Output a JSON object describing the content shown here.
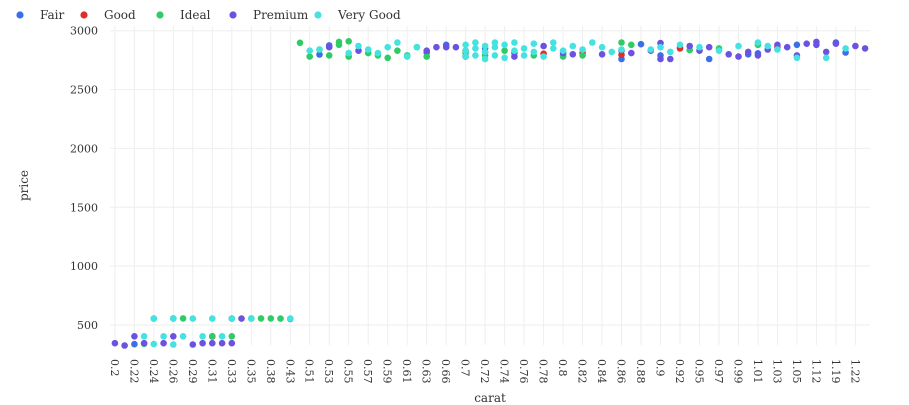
{
  "chart_data": {
    "type": "scatter",
    "xlabel": "carat",
    "ylabel": "price",
    "x_axis_kind": "category",
    "categories": [
      "0.2",
      "0.21",
      "0.22",
      "0.23",
      "0.24",
      "0.25",
      "0.26",
      "0.27",
      "0.29",
      "0.3",
      "0.31",
      "0.32",
      "0.33",
      "0.34",
      "0.35",
      "0.36",
      "0.38",
      "0.41",
      "0.43",
      "0.5",
      "0.51",
      "0.52",
      "0.53",
      "0.54",
      "0.55",
      "0.56",
      "0.57",
      "0.58",
      "0.59",
      "0.6",
      "0.61",
      "0.62",
      "0.63",
      "0.64",
      "0.66",
      "0.68",
      "0.7",
      "0.71",
      "0.72",
      "0.73",
      "0.74",
      "0.75",
      "0.76",
      "0.77",
      "0.78",
      "0.79",
      "0.8",
      "0.81",
      "0.82",
      "0.83",
      "0.84",
      "0.85",
      "0.86",
      "0.87",
      "0.88",
      "0.89",
      "0.9",
      "0.91",
      "0.92",
      "0.93",
      "0.95",
      "0.96",
      "0.97",
      "0.98",
      "0.99",
      "1",
      "1.01",
      "1.02",
      "1.03",
      "1.04",
      "1.05",
      "1.07",
      "1.12",
      "1.17",
      "1.19",
      "1.21",
      "1.22",
      "1.23"
    ],
    "tick_labels": [
      "0.2",
      "0.22",
      "0.24",
      "0.26",
      "0.29",
      "0.31",
      "0.33",
      "0.35",
      "0.38",
      "0.43",
      "0.51",
      "0.53",
      "0.55",
      "0.57",
      "0.59",
      "0.61",
      "0.63",
      "0.66",
      "0.7",
      "0.72",
      "0.74",
      "0.76",
      "0.78",
      "0.8",
      "0.82",
      "0.84",
      "0.86",
      "0.88",
      "0.9",
      "0.92",
      "0.95",
      "0.97",
      "0.99",
      "1.01",
      "1.03",
      "1.05",
      "1.12",
      "1.19",
      "1.22"
    ],
    "yticks": [
      500,
      1000,
      1500,
      2000,
      2500,
      3000
    ],
    "ylim": [
      330,
      3040
    ],
    "grid": true,
    "legend_position": "top-left",
    "series": [
      {
        "name": "Fair",
        "color": "#3b6fe8",
        "points": [
          [
            "0.22",
            337
          ],
          [
            "0.52",
            2798
          ],
          [
            "0.53",
            2875
          ],
          [
            "0.63",
            2815
          ],
          [
            "0.66",
            2880
          ],
          [
            "0.72",
            2850
          ],
          [
            "0.75",
            2812
          ],
          [
            "0.8",
            2790
          ],
          [
            "0.86",
            2760
          ],
          [
            "0.86",
            2830
          ],
          [
            "0.88",
            2885
          ],
          [
            "0.9",
            2790
          ],
          [
            "0.92",
            2855
          ],
          [
            "0.96",
            2760
          ],
          [
            "1",
            2800
          ],
          [
            "1.01",
            2808
          ],
          [
            "1.05",
            2880
          ],
          [
            "1.19",
            2900
          ],
          [
            "1.21",
            2815
          ]
        ]
      },
      {
        "name": "Good",
        "color": "#e02d2d",
        "points": [
          [
            "0.31",
            402
          ],
          [
            "0.7",
            2830
          ],
          [
            "0.78",
            2805
          ],
          [
            "0.82",
            2810
          ],
          [
            "0.86",
            2795
          ],
          [
            "0.92",
            2850
          ],
          [
            "1.03",
            2862
          ]
        ]
      },
      {
        "name": "Ideal",
        "color": "#2fcc66",
        "points": [
          [
            "0.23",
            340
          ],
          [
            "0.24",
            554
          ],
          [
            "0.26",
            556
          ],
          [
            "0.27",
            556
          ],
          [
            "0.31",
            405
          ],
          [
            "0.33",
            404
          ],
          [
            "0.35",
            556
          ],
          [
            "0.36",
            556
          ],
          [
            "0.38",
            556
          ],
          [
            "0.41",
            554
          ],
          [
            "0.5",
            2897
          ],
          [
            "0.51",
            2780
          ],
          [
            "0.52",
            2840
          ],
          [
            "0.53",
            2790
          ],
          [
            "0.54",
            2880
          ],
          [
            "0.54",
            2905
          ],
          [
            "0.55",
            2780
          ],
          [
            "0.55",
            2910
          ],
          [
            "0.57",
            2810
          ],
          [
            "0.58",
            2790
          ],
          [
            "0.59",
            2770
          ],
          [
            "0.6",
            2830
          ],
          [
            "0.61",
            2790
          ],
          [
            "0.62",
            2860
          ],
          [
            "0.63",
            2780
          ],
          [
            "0.7",
            2810
          ],
          [
            "0.72",
            2790
          ],
          [
            "0.74",
            2830
          ],
          [
            "0.77",
            2790
          ],
          [
            "0.8",
            2780
          ],
          [
            "0.82",
            2790
          ],
          [
            "0.86",
            2900
          ],
          [
            "0.87",
            2880
          ],
          [
            "0.93",
            2835
          ],
          [
            "0.97",
            2850
          ],
          [
            "1.01",
            2880
          ]
        ]
      },
      {
        "name": "Premium",
        "color": "#6b52e0",
        "points": [
          [
            "0.2",
            345
          ],
          [
            "0.21",
            326
          ],
          [
            "0.22",
            404
          ],
          [
            "0.23",
            345
          ],
          [
            "0.25",
            345
          ],
          [
            "0.26",
            404
          ],
          [
            "0.29",
            334
          ],
          [
            "0.3",
            345
          ],
          [
            "0.31",
            345
          ],
          [
            "0.32",
            345
          ],
          [
            "0.33",
            345
          ],
          [
            "0.33",
            554
          ],
          [
            "0.34",
            554
          ],
          [
            "0.43",
            552
          ],
          [
            "0.53",
            2860
          ],
          [
            "0.56",
            2830
          ],
          [
            "0.63",
            2830
          ],
          [
            "0.64",
            2860
          ],
          [
            "0.66",
            2860
          ],
          [
            "0.68",
            2860
          ],
          [
            "0.7",
            2780
          ],
          [
            "0.72",
            2820
          ],
          [
            "0.75",
            2780
          ],
          [
            "0.78",
            2870
          ],
          [
            "0.8",
            2810
          ],
          [
            "0.81",
            2800
          ],
          [
            "0.84",
            2800
          ],
          [
            "0.87",
            2810
          ],
          [
            "0.89",
            2830
          ],
          [
            "0.9",
            2760
          ],
          [
            "0.9",
            2895
          ],
          [
            "0.91",
            2760
          ],
          [
            "0.93",
            2870
          ],
          [
            "0.95",
            2830
          ],
          [
            "0.96",
            2860
          ],
          [
            "0.98",
            2800
          ],
          [
            "0.99",
            2780
          ],
          [
            "1",
            2820
          ],
          [
            "1.01",
            2790
          ],
          [
            "1.02",
            2840
          ],
          [
            "1.03",
            2880
          ],
          [
            "1.04",
            2860
          ],
          [
            "1.05",
            2790
          ],
          [
            "1.07",
            2890
          ],
          [
            "1.12",
            2880
          ],
          [
            "1.12",
            2905
          ],
          [
            "1.17",
            2820
          ],
          [
            "1.19",
            2890
          ],
          [
            "1.22",
            2870
          ],
          [
            "1.23",
            2850
          ]
        ]
      },
      {
        "name": "Very Good",
        "color": "#44e2e0",
        "points": [
          [
            "0.23",
            404
          ],
          [
            "0.24",
            338
          ],
          [
            "0.24",
            554
          ],
          [
            "0.25",
            404
          ],
          [
            "0.26",
            334
          ],
          [
            "0.26",
            554
          ],
          [
            "0.27",
            404
          ],
          [
            "0.29",
            554
          ],
          [
            "0.3",
            404
          ],
          [
            "0.31",
            554
          ],
          [
            "0.32",
            404
          ],
          [
            "0.33",
            554
          ],
          [
            "0.35",
            554
          ],
          [
            "0.43",
            554
          ],
          [
            "0.51",
            2830
          ],
          [
            "0.52",
            2840
          ],
          [
            "0.55",
            2810
          ],
          [
            "0.56",
            2870
          ],
          [
            "0.57",
            2840
          ],
          [
            "0.58",
            2810
          ],
          [
            "0.59",
            2860
          ],
          [
            "0.6",
            2900
          ],
          [
            "0.61",
            2780
          ],
          [
            "0.62",
            2860
          ],
          [
            "0.7",
            2780
          ],
          [
            "0.7",
            2830
          ],
          [
            "0.7",
            2880
          ],
          [
            "0.71",
            2790
          ],
          [
            "0.71",
            2850
          ],
          [
            "0.71",
            2900
          ],
          [
            "0.72",
            2760
          ],
          [
            "0.72",
            2820
          ],
          [
            "0.72",
            2870
          ],
          [
            "0.73",
            2790
          ],
          [
            "0.73",
            2860
          ],
          [
            "0.73",
            2900
          ],
          [
            "0.74",
            2770
          ],
          [
            "0.74",
            2880
          ],
          [
            "0.75",
            2830
          ],
          [
            "0.75",
            2900
          ],
          [
            "0.76",
            2790
          ],
          [
            "0.76",
            2850
          ],
          [
            "0.77",
            2820
          ],
          [
            "0.77",
            2890
          ],
          [
            "0.78",
            2780
          ],
          [
            "0.79",
            2850
          ],
          [
            "0.79",
            2900
          ],
          [
            "0.8",
            2830
          ],
          [
            "0.81",
            2870
          ],
          [
            "0.82",
            2840
          ],
          [
            "0.83",
            2900
          ],
          [
            "0.84",
            2860
          ],
          [
            "0.85",
            2820
          ],
          [
            "0.86",
            2840
          ],
          [
            "0.89",
            2840
          ],
          [
            "0.9",
            2860
          ],
          [
            "0.91",
            2820
          ],
          [
            "0.92",
            2880
          ],
          [
            "0.95",
            2860
          ],
          [
            "0.97",
            2830
          ],
          [
            "0.99",
            2870
          ],
          [
            "1.01",
            2900
          ],
          [
            "1.02",
            2870
          ],
          [
            "1.03",
            2840
          ],
          [
            "1.05",
            2770
          ],
          [
            "1.17",
            2770
          ],
          [
            "1.21",
            2850
          ]
        ]
      }
    ]
  }
}
